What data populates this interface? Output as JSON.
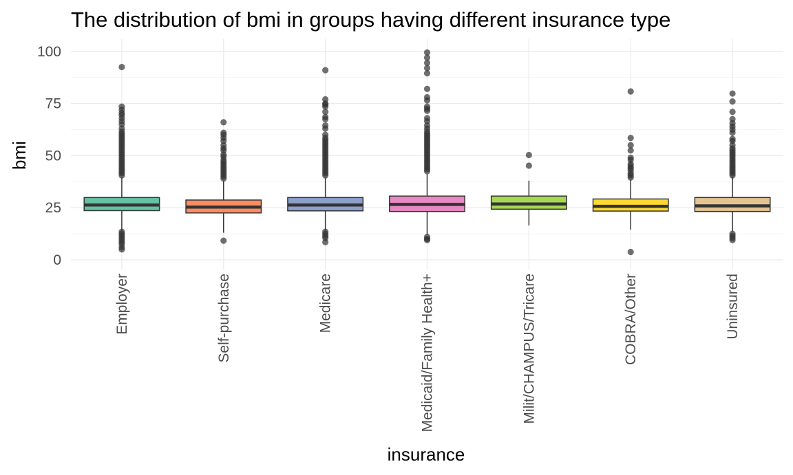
{
  "chart_data": {
    "type": "boxplot",
    "title": "The distribution of bmi in groups having different insurance type",
    "xlabel": "insurance",
    "ylabel": "bmi",
    "ylim": [
      -5,
      102
    ],
    "yticks": [
      0,
      25,
      50,
      75,
      100
    ],
    "grid": true,
    "legend": "none",
    "categories": [
      "Employer",
      "Self-purchase",
      "Medicare",
      "Medicaid/Family Health+",
      "Milit/CHAMPUS/Tricare",
      "COBRA/Other",
      "Uninsured"
    ],
    "colors": [
      "#66c2a5",
      "#fc8d62",
      "#8da0cb",
      "#e78ac3",
      "#a6d854",
      "#ffd92f",
      "#e5c494"
    ],
    "boxes": [
      {
        "lower_whisker": 14.0,
        "q1": 23.6,
        "median": 26.3,
        "q3": 29.9,
        "upper_whisker": 39.5,
        "outliers": [
          92.5,
          73.5,
          72,
          70.5,
          69.5,
          68,
          66.5,
          65,
          63,
          61.5,
          60.5,
          59.5,
          58.5,
          57.5,
          56.5,
          55.5,
          54.5,
          53.5,
          52.5,
          51.5,
          50.5,
          49.5,
          48.5,
          47.5,
          46.5,
          45.5,
          44.5,
          43.5,
          42.5,
          41.5,
          40.5,
          13.5,
          12.5,
          11.5,
          10.5,
          9.5,
          8.5,
          7.5,
          6,
          5
        ]
      },
      {
        "lower_whisker": 13.0,
        "q1": 22.5,
        "median": 25.3,
        "q3": 28.7,
        "upper_whisker": 38.0,
        "outliers": [
          66,
          61,
          60,
          58.5,
          57,
          55,
          53.5,
          52.5,
          50.5,
          49.5,
          48,
          47,
          46,
          45,
          44,
          43,
          42,
          41,
          40,
          39,
          9.2
        ]
      },
      {
        "lower_whisker": 14.0,
        "q1": 23.5,
        "median": 26.3,
        "q3": 29.9,
        "upper_whisker": 39.5,
        "outliers": [
          91,
          77,
          75,
          74.5,
          73.5,
          71,
          68.5,
          67.5,
          64.5,
          63,
          60,
          58.5,
          57.5,
          56.5,
          55.5,
          54.5,
          53.5,
          52.5,
          51.5,
          50.5,
          49.5,
          48.5,
          47.5,
          46.5,
          45.5,
          44.5,
          43.5,
          42.5,
          41.5,
          40.5,
          13.5,
          12.5,
          11.5,
          10.5,
          8.5
        ]
      },
      {
        "lower_whisker": 12.0,
        "q1": 23.2,
        "median": 26.6,
        "q3": 30.6,
        "upper_whisker": 41.0,
        "outliers": [
          99.5,
          97,
          94.5,
          92,
          89.5,
          82,
          78,
          76.5,
          73.5,
          72.5,
          71.5,
          68,
          66.5,
          64.5,
          63,
          61.5,
          60.5,
          59.5,
          58.5,
          57.5,
          56.5,
          55.5,
          54.5,
          53.5,
          52.5,
          51.5,
          50.5,
          49.5,
          48.5,
          47.5,
          46.5,
          45.5,
          44.5,
          43.5,
          42.5,
          11,
          10,
          9.5
        ]
      },
      {
        "lower_whisker": 16.5,
        "q1": 24.3,
        "median": 26.8,
        "q3": 30.6,
        "upper_whisker": 38.0,
        "outliers": [
          50.3,
          45.2
        ]
      },
      {
        "lower_whisker": 14.5,
        "q1": 23.4,
        "median": 25.7,
        "q3": 29.2,
        "upper_whisker": 38.5,
        "outliers": [
          80.8,
          58.5,
          55,
          52.5,
          49,
          48,
          46,
          45,
          44,
          43,
          41.5,
          40.5,
          39.5,
          3.8
        ]
      },
      {
        "lower_whisker": 13.5,
        "q1": 23.2,
        "median": 25.9,
        "q3": 29.9,
        "upper_whisker": 40.0,
        "outliers": [
          79.8,
          76,
          71,
          67.5,
          65.5,
          64,
          62.5,
          61,
          58,
          57,
          55,
          53.5,
          52.5,
          51.5,
          50.5,
          49.5,
          48.5,
          47.5,
          46.5,
          45.5,
          44.5,
          43.5,
          42.5,
          41.5,
          40.5,
          12.5,
          11.5,
          10.5,
          9.5
        ]
      }
    ]
  }
}
